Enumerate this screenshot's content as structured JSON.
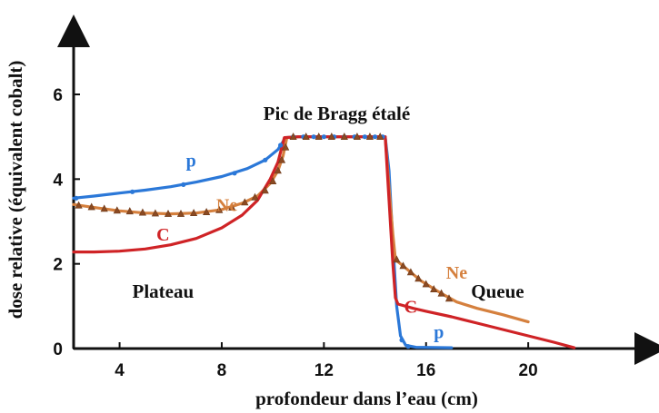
{
  "chart_data": {
    "type": "line",
    "title": "",
    "xlabel": "profondeur dans l’eau (cm)",
    "ylabel": "dose relative (équivalent cobalt)",
    "xlim": [
      2.2,
      24.8
    ],
    "ylim": [
      0,
      7.5
    ],
    "xticks": [
      4,
      8,
      12,
      16,
      20
    ],
    "yticks": [
      0,
      2,
      4,
      6
    ],
    "grid": false,
    "legend": "none",
    "annotations": [
      {
        "text": "Pic de Bragg étalé",
        "x": 12.5,
        "y": 5.4,
        "color": "#111111"
      },
      {
        "text": "Plateau",
        "x": 5.7,
        "y": 1.2,
        "color": "#111111"
      },
      {
        "text": "Queue",
        "x": 18.8,
        "y": 1.2,
        "color": "#111111"
      }
    ],
    "series": [
      {
        "name": "p",
        "color": "#2b78d8",
        "label_at": [
          6.8,
          4.3
        ],
        "points": [
          [
            2.2,
            3.55
          ],
          [
            3,
            3.6
          ],
          [
            4,
            3.67
          ],
          [
            5,
            3.74
          ],
          [
            6,
            3.82
          ],
          [
            7,
            3.93
          ],
          [
            8,
            4.06
          ],
          [
            9,
            4.25
          ],
          [
            9.7,
            4.45
          ],
          [
            10.2,
            4.7
          ],
          [
            10.5,
            4.98
          ],
          [
            11,
            5
          ],
          [
            12,
            5
          ],
          [
            13,
            5
          ],
          [
            14,
            5
          ],
          [
            14.4,
            5
          ],
          [
            14.55,
            4.2
          ],
          [
            14.7,
            2.5
          ],
          [
            14.85,
            1.0
          ],
          [
            15.0,
            0.3
          ],
          [
            15.2,
            0.08
          ],
          [
            15.6,
            0.03
          ],
          [
            17,
            0.02
          ]
        ]
      },
      {
        "name": "Ne",
        "color": "#d5803e",
        "label_at": [
          8.2,
          3.25
        ],
        "points": [
          [
            2.2,
            3.4
          ],
          [
            3,
            3.33
          ],
          [
            4,
            3.25
          ],
          [
            5,
            3.2
          ],
          [
            6,
            3.18
          ],
          [
            7,
            3.2
          ],
          [
            8,
            3.28
          ],
          [
            8.8,
            3.43
          ],
          [
            9.4,
            3.6
          ],
          [
            9.9,
            3.9
          ],
          [
            10.2,
            4.2
          ],
          [
            10.4,
            4.55
          ],
          [
            10.55,
            4.98
          ],
          [
            11,
            5
          ],
          [
            12,
            5
          ],
          [
            13,
            5
          ],
          [
            14,
            5
          ],
          [
            14.4,
            5
          ],
          [
            14.55,
            3.8
          ],
          [
            14.7,
            2.7
          ],
          [
            14.8,
            2.1
          ],
          [
            15.2,
            1.9
          ],
          [
            15.8,
            1.6
          ],
          [
            16.6,
            1.3
          ],
          [
            17.2,
            1.1
          ],
          [
            18,
            0.95
          ],
          [
            19,
            0.8
          ],
          [
            20,
            0.63
          ]
        ]
      },
      {
        "name": "C",
        "color": "#cf2326",
        "label_at": [
          5.7,
          2.55
        ],
        "points": [
          [
            2.2,
            2.28
          ],
          [
            3,
            2.28
          ],
          [
            4,
            2.3
          ],
          [
            5,
            2.35
          ],
          [
            6,
            2.45
          ],
          [
            7,
            2.6
          ],
          [
            8,
            2.85
          ],
          [
            8.8,
            3.15
          ],
          [
            9.4,
            3.5
          ],
          [
            9.9,
            4.0
          ],
          [
            10.2,
            4.4
          ],
          [
            10.45,
            4.98
          ],
          [
            11,
            5
          ],
          [
            12,
            5
          ],
          [
            13,
            5
          ],
          [
            14,
            5
          ],
          [
            14.4,
            5
          ],
          [
            14.55,
            3.5
          ],
          [
            14.7,
            2.0
          ],
          [
            14.8,
            1.2
          ],
          [
            14.9,
            1.05
          ],
          [
            15.5,
            0.95
          ],
          [
            16,
            0.88
          ],
          [
            17,
            0.75
          ],
          [
            18,
            0.6
          ],
          [
            19,
            0.45
          ],
          [
            20,
            0.3
          ],
          [
            21,
            0.15
          ],
          [
            21.8,
            0.02
          ]
        ]
      }
    ],
    "markers": {
      "p": [
        [
          2.3,
          3.55
        ],
        [
          4.5,
          3.7
        ],
        [
          6.5,
          3.87
        ],
        [
          8.5,
          4.14
        ],
        [
          9.7,
          4.45
        ],
        [
          10.3,
          4.8
        ],
        [
          10.8,
          5
        ],
        [
          11.2,
          5
        ],
        [
          11.6,
          5
        ],
        [
          12,
          5
        ],
        [
          12.4,
          5
        ],
        [
          12.8,
          5
        ],
        [
          13.2,
          5
        ],
        [
          13.6,
          5
        ],
        [
          14,
          5
        ],
        [
          14.3,
          5
        ],
        [
          15.05,
          0.2
        ],
        [
          15.3,
          0.05
        ]
      ],
      "Ne": [
        [
          2.4,
          3.38
        ],
        [
          2.9,
          3.34
        ],
        [
          3.4,
          3.3
        ],
        [
          3.9,
          3.26
        ],
        [
          4.4,
          3.24
        ],
        [
          4.9,
          3.21
        ],
        [
          5.4,
          3.19
        ],
        [
          5.9,
          3.18
        ],
        [
          6.4,
          3.18
        ],
        [
          6.9,
          3.2
        ],
        [
          7.4,
          3.22
        ],
        [
          7.9,
          3.27
        ],
        [
          8.4,
          3.33
        ],
        [
          8.9,
          3.45
        ],
        [
          9.3,
          3.57
        ],
        [
          9.7,
          3.73
        ],
        [
          10.0,
          3.95
        ],
        [
          10.2,
          4.2
        ],
        [
          10.35,
          4.45
        ],
        [
          10.5,
          4.75
        ],
        [
          10.8,
          5
        ],
        [
          11.3,
          5
        ],
        [
          11.8,
          5
        ],
        [
          12.3,
          5
        ],
        [
          12.8,
          5
        ],
        [
          13.3,
          5
        ],
        [
          13.8,
          5
        ],
        [
          14.2,
          5
        ],
        [
          14.85,
          2.1
        ],
        [
          15.1,
          1.95
        ],
        [
          15.4,
          1.8
        ],
        [
          15.7,
          1.65
        ],
        [
          16.0,
          1.52
        ],
        [
          16.3,
          1.4
        ],
        [
          16.6,
          1.3
        ],
        [
          16.9,
          1.18
        ]
      ]
    },
    "series_labels": [
      {
        "text": "p",
        "x": 6.8,
        "y": 4.3,
        "color": "#2b78d8"
      },
      {
        "text": "Ne",
        "x": 8.2,
        "y": 3.25,
        "color": "#d5803e"
      },
      {
        "text": "C",
        "x": 5.7,
        "y": 2.55,
        "color": "#cf2326"
      },
      {
        "text": "Ne",
        "x": 17.2,
        "y": 1.65,
        "color": "#d5803e"
      },
      {
        "text": "C",
        "x": 15.4,
        "y": 0.85,
        "color": "#cf2326"
      },
      {
        "text": "p",
        "x": 16.5,
        "y": 0.25,
        "color": "#2b78d8"
      }
    ]
  }
}
